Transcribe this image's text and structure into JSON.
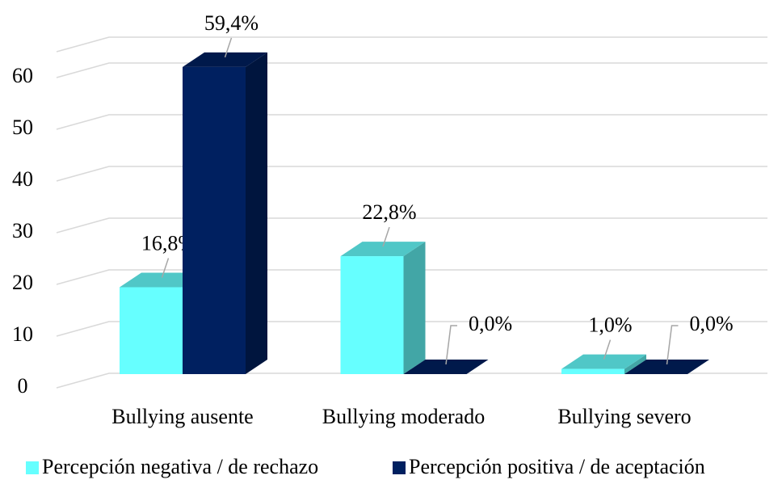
{
  "chart_data": {
    "type": "bar3d",
    "categories": [
      "Bullying ausente",
      "Bullying moderado",
      "Bullying severo"
    ],
    "series": [
      {
        "name": "Percepción negativa / de rechazo",
        "color": "#66ffff",
        "values": [
          16.8,
          22.8,
          1.0
        ],
        "value_labels": [
          "16,8%",
          "22,8%",
          "1,0%"
        ]
      },
      {
        "name": "Percepción positiva / de aceptación",
        "color": "#002060",
        "values": [
          59.4,
          0.0,
          0.0
        ],
        "value_labels": [
          "59,4%",
          "0,0%",
          "0,0%"
        ]
      }
    ],
    "ylim": [
      0,
      65
    ],
    "yticks": [
      0,
      10,
      20,
      30,
      40,
      50,
      60
    ],
    "grid": true,
    "legend": "bottom"
  }
}
